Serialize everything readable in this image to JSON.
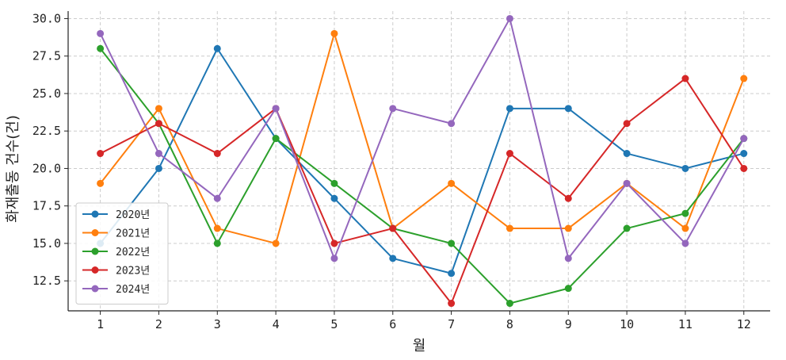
{
  "chart_data": {
    "type": "line",
    "title": "",
    "xlabel": "월",
    "ylabel": "화재출동 건수(건)",
    "categories": [
      "1",
      "2",
      "3",
      "4",
      "5",
      "6",
      "7",
      "8",
      "9",
      "10",
      "11",
      "12"
    ],
    "x": [
      1,
      2,
      3,
      4,
      5,
      6,
      7,
      8,
      9,
      10,
      11,
      12
    ],
    "ylim": [
      10.5,
      30.5
    ],
    "yticks": [
      12.5,
      15.0,
      17.5,
      20.0,
      22.5,
      25.0,
      27.5,
      30.0
    ],
    "ytick_labels": [
      "12.5",
      "15.0",
      "17.5",
      "20.0",
      "22.5",
      "25.0",
      "27.5",
      "30.0"
    ],
    "grid": true,
    "legend_position": "lower-left",
    "series": [
      {
        "name": "2020년",
        "color": "#1f77b4",
        "values": [
          15,
          20,
          28,
          22,
          18,
          14,
          13,
          24,
          24,
          21,
          20,
          21
        ]
      },
      {
        "name": "2021년",
        "color": "#ff7f0e",
        "values": [
          19,
          24,
          16,
          15,
          29,
          16,
          19,
          16,
          16,
          19,
          16,
          26
        ]
      },
      {
        "name": "2022년",
        "color": "#2ca02c",
        "values": [
          28,
          23,
          15,
          22,
          19,
          16,
          15,
          11,
          12,
          16,
          17,
          22
        ]
      },
      {
        "name": "2023년",
        "color": "#d62728",
        "values": [
          21,
          23,
          21,
          24,
          15,
          16,
          11,
          21,
          18,
          23,
          26,
          20
        ]
      },
      {
        "name": "2024년",
        "color": "#9467bd",
        "values": [
          29,
          21,
          18,
          24,
          14,
          24,
          23,
          30,
          14,
          19,
          15,
          22
        ]
      }
    ]
  }
}
